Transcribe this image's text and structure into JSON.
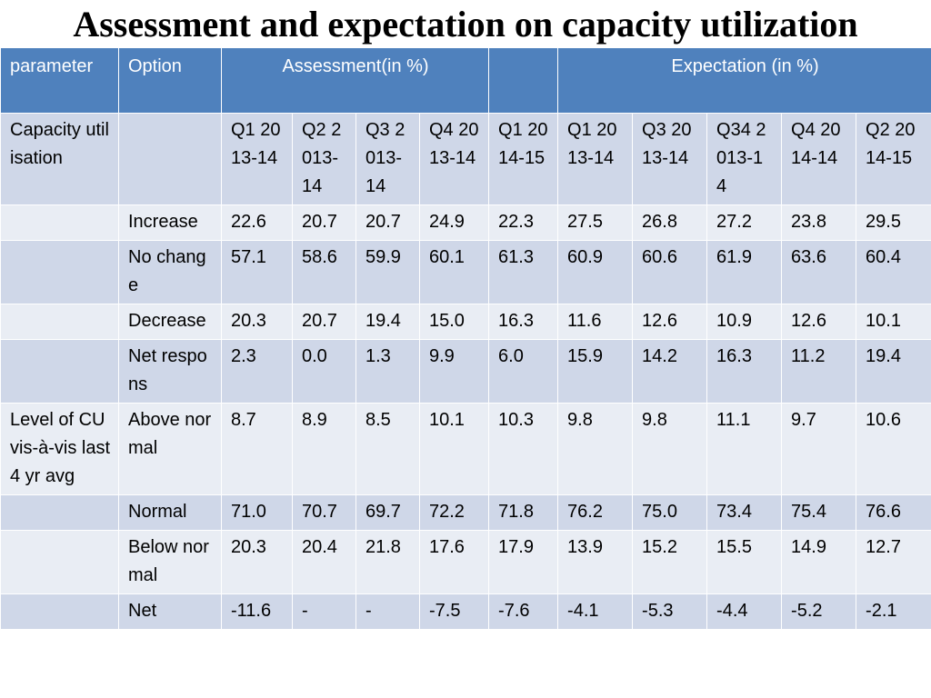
{
  "title": "Assessment and expectation on capacity utilization",
  "header": {
    "parameter": "parameter",
    "option": "Option",
    "assessment": "Assessment(in %)",
    "blank": "",
    "expectation": "Expectation (in %)"
  },
  "quarter_row": {
    "parameter": "Capacity utilisation",
    "option": "",
    "quarters": [
      "Q1 2013-14",
      "Q2 2013-14",
      "Q3 2013-14",
      "Q4 2013-14",
      "Q1 2014-15",
      "Q1 2013-14",
      "Q3 2013-14",
      "Q34 2013-14",
      "Q4 2014-14",
      "Q2 2014-15"
    ]
  },
  "rows": [
    {
      "parameter": "",
      "option": "Increase",
      "values": [
        "22.6",
        "20.7",
        "20.7",
        "24.9",
        "22.3",
        "27.5",
        "26.8",
        "27.2",
        "23.8",
        "29.5"
      ]
    },
    {
      "parameter": "",
      "option": "No change",
      "values": [
        "57.1",
        "58.6",
        "59.9",
        "60.1",
        "61.3",
        "60.9",
        "60.6",
        "61.9",
        "63.6",
        "60.4"
      ]
    },
    {
      "parameter": "",
      "option": "Decrease",
      "values": [
        "20.3",
        "20.7",
        "19.4",
        "15.0",
        "16.3",
        "11.6",
        "12.6",
        "10.9",
        "12.6",
        "10.1"
      ]
    },
    {
      "parameter": "",
      "option": "Net respons",
      "values": [
        "2.3",
        "0.0",
        "1.3",
        "9.9",
        "6.0",
        "15.9",
        "14.2",
        "16.3",
        "11.2",
        "19.4"
      ]
    },
    {
      "parameter": "Level of CU vis-à-vis last 4 yr avg",
      "option": "Above normal",
      "values": [
        "8.7",
        "8.9",
        "8.5",
        "10.1",
        "10.3",
        "9.8",
        "9.8",
        "11.1",
        "9.7",
        "10.6"
      ]
    },
    {
      "parameter": "",
      "option": "Normal",
      "values": [
        "71.0",
        "70.7",
        "69.7",
        "72.2",
        "71.8",
        "76.2",
        "75.0",
        "73.4",
        "75.4",
        "76.6"
      ]
    },
    {
      "parameter": "",
      "option": "Below normal",
      "values": [
        "20.3",
        "20.4",
        "21.8",
        "17.6",
        "17.9",
        "13.9",
        "15.2",
        "15.5",
        "14.9",
        "12.7"
      ]
    },
    {
      "parameter": "",
      "option": "Net",
      "values": [
        "-11.6",
        "-",
        "-",
        "-7.5",
        "-7.6",
        "-4.1",
        "-5.3",
        "-4.4",
        "-5.2",
        "-2.1"
      ]
    }
  ]
}
